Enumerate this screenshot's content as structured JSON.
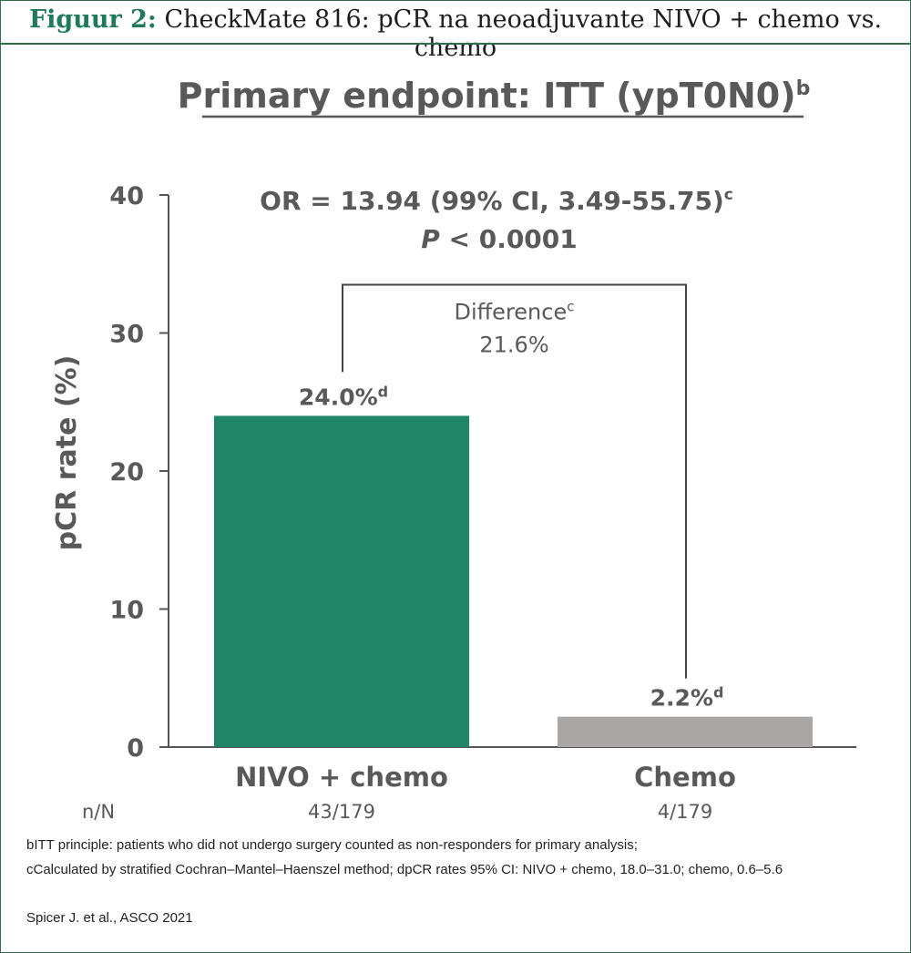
{
  "figure": {
    "label": "Figuur 2:",
    "title": "CheckMate 816: pCR na neoadjuvante NIVO + chemo vs. chemo"
  },
  "chart_data": {
    "type": "bar",
    "title": "Primary endpoint: ITT (ypT0N0)",
    "title_sup": "b",
    "ylabel": "pCR rate (%)",
    "xlabel": "",
    "ylim": [
      0,
      40
    ],
    "yticks": [
      0,
      10,
      20,
      30,
      40
    ],
    "grid": false,
    "categories": [
      "NIVO + chemo",
      "Chemo"
    ],
    "values": [
      24.0,
      2.2
    ],
    "value_labels": [
      "24.0%",
      "2.2%"
    ],
    "value_label_sup": "d",
    "colors": [
      "#1f8566",
      "#aaa6a6"
    ],
    "n_label": "n/N",
    "n_values": [
      "43/179",
      "4/179"
    ],
    "stats": {
      "or_text": "OR = 13.94 (99% CI, 3.49-55.75)",
      "or_sup": "c",
      "p_italic": "P",
      "p_rest": " < 0.0001"
    },
    "difference": {
      "label": "Difference",
      "label_sup": "c",
      "value": "21.6%",
      "bracket_top": 33.5
    }
  },
  "footnotes": [
    "bITT principle: patients who did not undergo surgery counted as non-responders for primary analysis;",
    "cCalculated by stratified Cochran–Mantel–Haenszel method; dpCR rates 95% CI: NIVO + chemo, 18.0–31.0; chemo, 0.6–5.6"
  ],
  "citation": "Spicer J. et al., ASCO 2021"
}
